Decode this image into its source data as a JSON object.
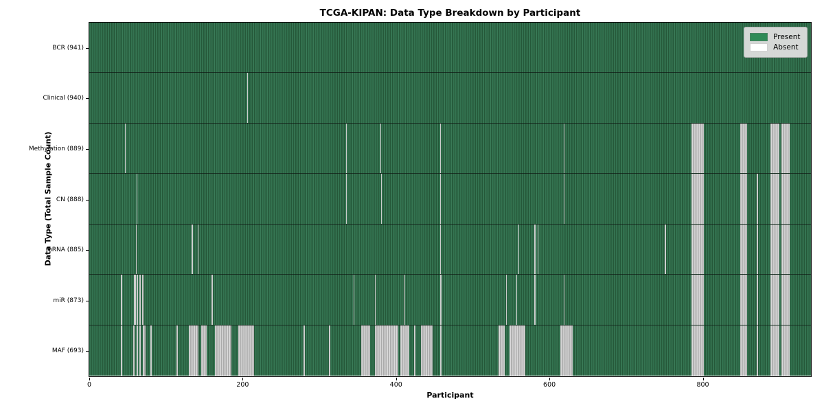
{
  "chart_data": {
    "type": "heatmap",
    "title": "TCGA-KIPAN: Data Type Breakdown by Participant",
    "xlabel": "Participant",
    "ylabel": "Data Type (Total Sample Count)",
    "legend": {
      "entries": [
        {
          "label": "Present",
          "color": "#2e8b57"
        },
        {
          "label": "Absent",
          "color": "#ffffff"
        }
      ]
    },
    "colors": {
      "present_mid": "#2f6d4b",
      "present_light": "#3a7a57",
      "present_dark": "#255839",
      "absent_mid": "#c2c2c2",
      "absent_light": "#dadada",
      "absent_dark": "#ababab"
    },
    "x_axis": {
      "label": "Participant",
      "ticks": [
        0,
        200,
        400,
        600,
        800
      ],
      "range": [
        0,
        941
      ],
      "grid": false
    },
    "rows": [
      {
        "name": "BCR",
        "count": 941,
        "absent_ranges": []
      },
      {
        "name": "Clinical",
        "count": 940,
        "absent_ranges": [
          [
            206,
            207
          ]
        ]
      },
      {
        "name": "Methylation",
        "count": 889,
        "absent_ranges": [
          [
            47,
            48
          ],
          [
            335,
            336
          ],
          [
            380,
            381
          ],
          [
            458,
            459
          ],
          [
            619,
            620
          ],
          [
            786,
            802
          ],
          [
            849,
            858
          ],
          [
            889,
            900
          ],
          [
            903,
            914
          ]
        ]
      },
      {
        "name": "CN",
        "count": 888,
        "absent_ranges": [
          [
            62,
            63
          ],
          [
            335,
            336
          ],
          [
            381,
            382
          ],
          [
            458,
            459
          ],
          [
            619,
            620
          ],
          [
            786,
            802
          ],
          [
            849,
            858
          ],
          [
            871,
            872
          ],
          [
            889,
            900
          ],
          [
            903,
            914
          ]
        ]
      },
      {
        "name": "mRNA",
        "count": 885,
        "absent_ranges": [
          [
            61,
            62
          ],
          [
            134,
            135
          ],
          [
            142,
            143
          ],
          [
            458,
            459
          ],
          [
            560,
            561
          ],
          [
            581,
            582
          ],
          [
            585,
            586
          ],
          [
            751,
            752
          ],
          [
            786,
            802
          ],
          [
            849,
            858
          ],
          [
            871,
            872
          ],
          [
            889,
            900
          ],
          [
            903,
            914
          ]
        ]
      },
      {
        "name": "miR",
        "count": 873,
        "absent_ranges": [
          [
            42,
            43
          ],
          [
            59,
            61
          ],
          [
            62,
            64
          ],
          [
            66,
            68
          ],
          [
            69,
            71
          ],
          [
            160,
            162
          ],
          [
            345,
            346
          ],
          [
            373,
            374
          ],
          [
            411,
            412
          ],
          [
            458,
            460
          ],
          [
            544,
            545
          ],
          [
            557,
            558
          ],
          [
            581,
            582
          ],
          [
            619,
            620
          ],
          [
            786,
            802
          ],
          [
            849,
            858
          ],
          [
            871,
            872
          ],
          [
            889,
            900
          ],
          [
            903,
            914
          ]
        ]
      },
      {
        "name": "MAF",
        "count": 693,
        "absent_ranges": [
          [
            42,
            43
          ],
          [
            58,
            60
          ],
          [
            62,
            64
          ],
          [
            66,
            68
          ],
          [
            70,
            74
          ],
          [
            80,
            82
          ],
          [
            114,
            116
          ],
          [
            130,
            143
          ],
          [
            146,
            154
          ],
          [
            164,
            186
          ],
          [
            195,
            215
          ],
          [
            280,
            282
          ],
          [
            313,
            315
          ],
          [
            355,
            367
          ],
          [
            373,
            403
          ],
          [
            406,
            418
          ],
          [
            424,
            426
          ],
          [
            433,
            448
          ],
          [
            458,
            460
          ],
          [
            534,
            542
          ],
          [
            548,
            569
          ],
          [
            615,
            631
          ],
          [
            786,
            802
          ],
          [
            849,
            858
          ],
          [
            871,
            872
          ],
          [
            889,
            900
          ],
          [
            903,
            914
          ]
        ]
      }
    ]
  }
}
